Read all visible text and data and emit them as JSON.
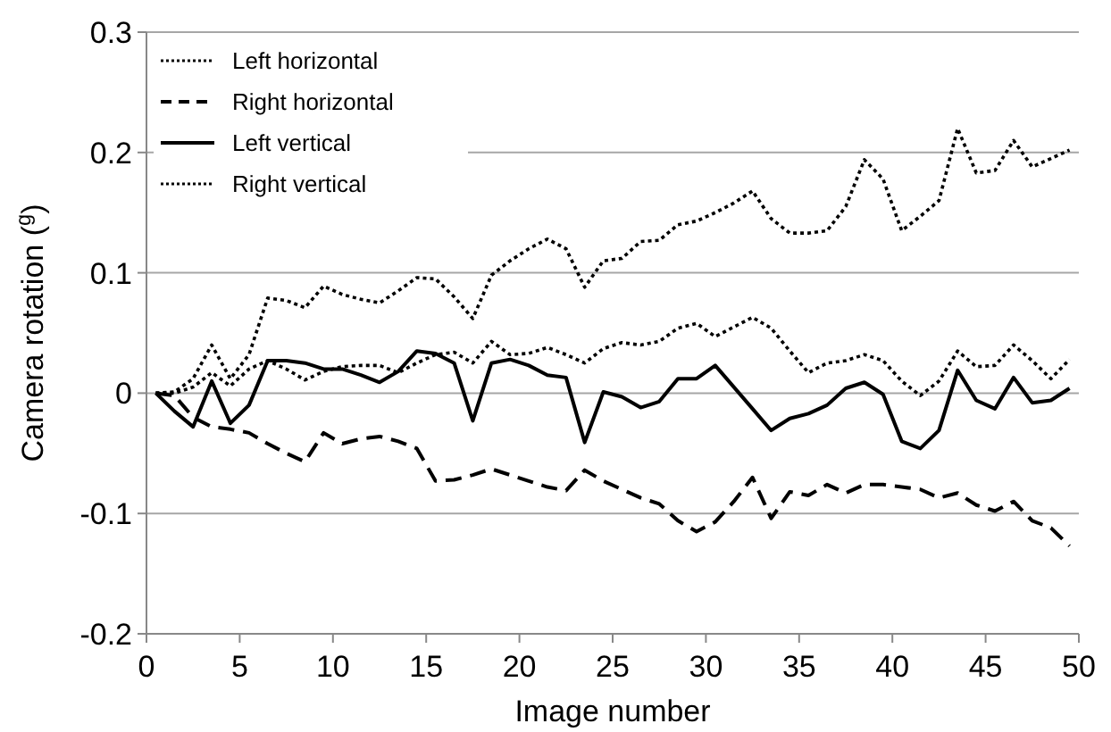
{
  "chart_data": {
    "type": "line",
    "xlabel": "Image number",
    "ylabel": "Camera rotation ($^{g}$)",
    "x": [
      0.5,
      1.5,
      2.5,
      3.5,
      4.5,
      5.5,
      6.5,
      7.5,
      8.5,
      9.5,
      10.5,
      11.5,
      12.5,
      13.5,
      14.5,
      15.5,
      16.5,
      17.5,
      18.5,
      19.5,
      20.5,
      21.5,
      22.5,
      23.5,
      24.5,
      25.5,
      26.5,
      27.5,
      28.5,
      29.5,
      30.5,
      31.5,
      32.5,
      33.5,
      34.5,
      35.5,
      36.5,
      37.5,
      38.5,
      39.5,
      40.5,
      41.5,
      42.5,
      43.5,
      44.5,
      45.5,
      46.5,
      47.5,
      48.5,
      49.5
    ],
    "series": [
      {
        "name": "Left horizontal",
        "color": "#000000",
        "line_style": "dotted",
        "values": [
          0,
          0,
          0.005,
          0.017,
          0.006,
          0.02,
          0.027,
          0.02,
          0.011,
          0.018,
          0.022,
          0.023,
          0.023,
          0.017,
          0.025,
          0.032,
          0.034,
          0.025,
          0.043,
          0.032,
          0.033,
          0.038,
          0.032,
          0.025,
          0.037,
          0.042,
          0.04,
          0.043,
          0.054,
          0.058,
          0.047,
          0.055,
          0.063,
          0.054,
          0.035,
          0.017,
          0.025,
          0.027,
          0.032,
          0.027,
          0.01,
          -0.002,
          0.01,
          0.035,
          0.022,
          0.023,
          0.04,
          0.027,
          0.012,
          0.028
        ]
      },
      {
        "name": "Right horizontal",
        "color": "#000000",
        "line_style": "dashed",
        "values": [
          0,
          -0.002,
          -0.02,
          -0.028,
          -0.03,
          -0.033,
          -0.042,
          -0.05,
          -0.057,
          -0.033,
          -0.042,
          -0.038,
          -0.036,
          -0.04,
          -0.046,
          -0.073,
          -0.072,
          -0.068,
          -0.063,
          -0.068,
          -0.073,
          -0.078,
          -0.081,
          -0.064,
          -0.073,
          -0.08,
          -0.087,
          -0.092,
          -0.106,
          -0.115,
          -0.107,
          -0.09,
          -0.07,
          -0.104,
          -0.082,
          -0.085,
          -0.076,
          -0.083,
          -0.076,
          -0.076,
          -0.078,
          -0.08,
          -0.087,
          -0.083,
          -0.093,
          -0.098,
          -0.09,
          -0.106,
          -0.112,
          -0.127
        ]
      },
      {
        "name": "Left vertical",
        "color": "#000000",
        "line_style": "solid",
        "values": [
          0,
          -0.015,
          -0.028,
          0.01,
          -0.025,
          -0.01,
          0.027,
          0.027,
          0.025,
          0.02,
          0.02,
          0.015,
          0.009,
          0.018,
          0.035,
          0.033,
          0.025,
          -0.023,
          0.025,
          0.028,
          0.023,
          0.015,
          0.013,
          -0.041,
          0.001,
          -0.003,
          -0.012,
          -0.007,
          0.012,
          0.012,
          0.023,
          0.005,
          -0.013,
          -0.031,
          -0.021,
          -0.017,
          -0.01,
          0.004,
          0.009,
          -0.001,
          -0.04,
          -0.046,
          -0.031,
          0.019,
          -0.006,
          -0.013,
          0.013,
          -0.008,
          -0.006,
          0.004
        ]
      },
      {
        "name": "Right vertical",
        "color": "#000000",
        "line_style": "dotted",
        "values": [
          0,
          0.001,
          0.012,
          0.04,
          0.012,
          0.032,
          0.079,
          0.077,
          0.071,
          0.089,
          0.082,
          0.078,
          0.075,
          0.085,
          0.096,
          0.095,
          0.08,
          0.062,
          0.098,
          0.11,
          0.12,
          0.128,
          0.12,
          0.088,
          0.11,
          0.112,
          0.126,
          0.127,
          0.14,
          0.143,
          0.15,
          0.158,
          0.168,
          0.145,
          0.133,
          0.133,
          0.135,
          0.155,
          0.194,
          0.178,
          0.135,
          0.147,
          0.16,
          0.22,
          0.183,
          0.185,
          0.21,
          0.188,
          0.195,
          0.202
        ]
      }
    ],
    "xlim": [
      0,
      50
    ],
    "xticks": [
      0,
      5,
      10,
      15,
      20,
      25,
      30,
      35,
      40,
      45,
      50
    ],
    "ylim": [
      -0.2,
      0.3
    ],
    "yticks": [
      -0.2,
      -0.1,
      0,
      0.1,
      0.2,
      0.3
    ],
    "grid": "y",
    "legend": "top left",
    "marker": "none"
  }
}
